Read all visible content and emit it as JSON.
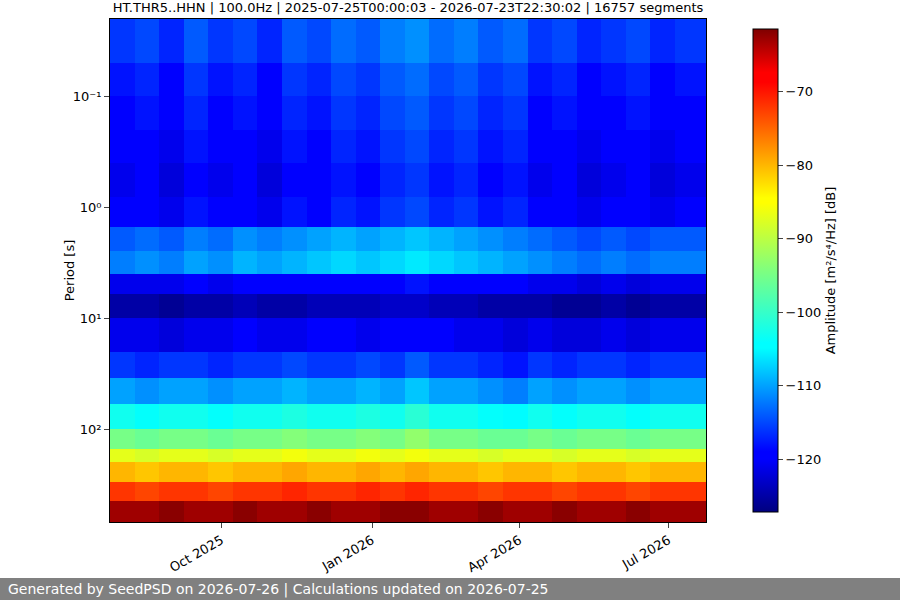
{
  "chart_data": {
    "type": "heatmap",
    "title": "HT.THR5..HHN | 100.0Hz | 2025-07-25T00:00:03 - 2026-07-23T22:30:02 | 16757 segments",
    "ylabel": "Period [s]",
    "colorbar_label": "Amplitude [m²/s⁴/Hz] [dB]",
    "log": "y",
    "grid": true,
    "xlim": [
      "2025-07-25T00:00:03",
      "2026-07-23T22:30:02"
    ],
    "ylim": [
      690,
      0.02
    ],
    "xticks": [
      {
        "value": "2025-10-01",
        "label": "Oct 2025"
      },
      {
        "value": "2026-01-01",
        "label": "Jan 2026"
      },
      {
        "value": "2026-04-01",
        "label": "Apr 2026"
      },
      {
        "value": "2026-07-01",
        "label": "Jul 2026"
      }
    ],
    "yticks": [
      {
        "value": 0.1,
        "label": "10⁻¹"
      },
      {
        "value": 1,
        "label": "10⁰"
      },
      {
        "value": 10,
        "label": "10¹"
      },
      {
        "value": 100,
        "label": "10²"
      }
    ],
    "colorbar_range": [
      -127.2,
      -61.5
    ],
    "colorbar_ticks": [
      {
        "value": -120,
        "label": "−120"
      },
      {
        "value": -110,
        "label": "−110"
      },
      {
        "value": -100,
        "label": "−100"
      },
      {
        "value": -90,
        "label": "−90"
      },
      {
        "value": -80,
        "label": "−80"
      },
      {
        "value": -70,
        "label": "−70"
      }
    ],
    "time_edges": [
      "2025-07-25T00:00:03",
      "2025-08-09",
      "2025-08-24",
      "2025-09-08",
      "2025-09-23",
      "2025-10-08",
      "2025-10-23",
      "2025-11-07",
      "2025-11-22",
      "2025-12-07",
      "2025-12-22",
      "2026-01-06",
      "2026-01-21",
      "2026-02-05",
      "2026-02-20",
      "2026-03-07",
      "2026-03-22",
      "2026-04-06",
      "2026-04-21",
      "2026-05-06",
      "2026-05-21",
      "2026-06-05",
      "2026-06-20",
      "2026-07-05",
      "2026-07-23T22:30:02"
    ],
    "period_edges": [
      0.02,
      0.05,
      0.1,
      0.2,
      0.4,
      0.8,
      1.5,
      2.5,
      4,
      6,
      10,
      20,
      35,
      60,
      100,
      150,
      200,
      300,
      450,
      690
    ],
    "cells": [
      [
        -116,
        -115,
        -117,
        -114,
        -116,
        -115,
        -117,
        -114,
        -115,
        -113,
        -114,
        -112,
        -111,
        -113,
        -112,
        -114,
        -113,
        -116,
        -115,
        -117,
        -116,
        -115,
        -117,
        -116
      ],
      [
        -118,
        -117,
        -119,
        -116,
        -118,
        -117,
        -119,
        -116,
        -117,
        -115,
        -116,
        -114,
        -113,
        -115,
        -114,
        -116,
        -115,
        -118,
        -117,
        -119,
        -118,
        -117,
        -119,
        -118
      ],
      [
        -119,
        -118,
        -120,
        -117,
        -119,
        -118,
        -120,
        -117,
        -118,
        -116,
        -117,
        -115,
        -114,
        -116,
        -115,
        -117,
        -116,
        -119,
        -118,
        -120,
        -119,
        -118,
        -120,
        -119
      ],
      [
        -120,
        -119,
        -121,
        -118,
        -120,
        -119,
        -121,
        -118,
        -119,
        -117,
        -118,
        -116,
        -115,
        -117,
        -116,
        -118,
        -117,
        -120,
        -119,
        -121,
        -120,
        -119,
        -121,
        -120
      ],
      [
        -121,
        -120,
        -122,
        -119,
        -121,
        -120,
        -122,
        -119,
        -120,
        -118,
        -119,
        -117,
        -116,
        -118,
        -117,
        -119,
        -118,
        -121,
        -120,
        -122,
        -121,
        -120,
        -122,
        -121
      ],
      [
        -120,
        -119,
        -121,
        -118,
        -120,
        -119,
        -121,
        -118,
        -119,
        -117,
        -118,
        -116,
        -115,
        -117,
        -116,
        -118,
        -117,
        -120,
        -119,
        -121,
        -120,
        -119,
        -121,
        -120
      ],
      [
        -114,
        -113,
        -114,
        -112,
        -113,
        -111,
        -112,
        -111,
        -110,
        -109,
        -110,
        -109,
        -108,
        -109,
        -110,
        -111,
        -112,
        -113,
        -114,
        -115,
        -114,
        -115,
        -114,
        -114
      ],
      [
        -112,
        -111,
        -112,
        -110,
        -111,
        -109,
        -110,
        -109,
        -108,
        -107,
        -108,
        -107,
        -106,
        -107,
        -108,
        -109,
        -110,
        -111,
        -112,
        -113,
        -112,
        -113,
        -112,
        -112
      ],
      [
        -121,
        -121,
        -121,
        -120,
        -121,
        -120,
        -120,
        -120,
        -119,
        -119,
        -119,
        -119,
        -118,
        -119,
        -119,
        -120,
        -120,
        -121,
        -121,
        -122,
        -121,
        -122,
        -121,
        -121
      ],
      [
        -125,
        -125,
        -126,
        -125,
        -125,
        -124,
        -125,
        -125,
        -124,
        -124,
        -124,
        -123,
        -123,
        -124,
        -124,
        -125,
        -125,
        -125,
        -126,
        -126,
        -125,
        -126,
        -125,
        -125
      ],
      [
        -121,
        -121,
        -122,
        -121,
        -121,
        -120,
        -121,
        -121,
        -120,
        -120,
        -121,
        -120,
        -119,
        -120,
        -121,
        -121,
        -122,
        -121,
        -122,
        -122,
        -121,
        -122,
        -121,
        -121
      ],
      [
        -116,
        -117,
        -116,
        -116,
        -117,
        -116,
        -116,
        -115,
        -116,
        -116,
        -115,
        -116,
        -114,
        -116,
        -116,
        -117,
        -118,
        -116,
        -117,
        -116,
        -116,
        -117,
        -116,
        -116
      ],
      [
        -110,
        -111,
        -110,
        -110,
        -111,
        -110,
        -110,
        -109,
        -110,
        -110,
        -109,
        -110,
        -108,
        -110,
        -110,
        -111,
        -112,
        -110,
        -111,
        -110,
        -110,
        -111,
        -110,
        -110
      ],
      [
        -103,
        -104,
        -103,
        -103,
        -104,
        -103,
        -103,
        -102,
        -103,
        -103,
        -102,
        -103,
        -101,
        -103,
        -103,
        -104,
        -105,
        -103,
        -104,
        -103,
        -103,
        -104,
        -103,
        -103
      ],
      [
        -95,
        -96,
        -95,
        -95,
        -96,
        -95,
        -95,
        -94,
        -95,
        -95,
        -94,
        -95,
        -93,
        -95,
        -95,
        -96,
        -96,
        -95,
        -96,
        -95,
        -95,
        -96,
        -95,
        -95
      ],
      [
        -87,
        -88,
        -87,
        -87,
        -88,
        -87,
        -87,
        -86,
        -87,
        -87,
        -86,
        -87,
        -86,
        -87,
        -87,
        -88,
        -87,
        -87,
        -88,
        -87,
        -87,
        -88,
        -87,
        -87
      ],
      [
        -80,
        -81,
        -80,
        -80,
        -81,
        -80,
        -80,
        -79,
        -80,
        -80,
        -79,
        -80,
        -79,
        -80,
        -80,
        -81,
        -80,
        -80,
        -81,
        -80,
        -80,
        -81,
        -80,
        -80
      ],
      [
        -72,
        -73,
        -72,
        -72,
        -73,
        -72,
        -72,
        -71,
        -72,
        -72,
        -71,
        -72,
        -71,
        -72,
        -72,
        -73,
        -72,
        -72,
        -73,
        -72,
        -72,
        -73,
        -72,
        -72
      ],
      [
        -63,
        -63,
        -62,
        -63,
        -63,
        -62,
        -63,
        -63,
        -62,
        -63,
        -63,
        -62,
        -62,
        -63,
        -63,
        -62,
        -63,
        -63,
        -62,
        -63,
        -63,
        -62,
        -63,
        -63
      ]
    ]
  },
  "footer": "Generated by SeedPSD on 2026-07-26 | Calculations updated on 2026-07-25"
}
